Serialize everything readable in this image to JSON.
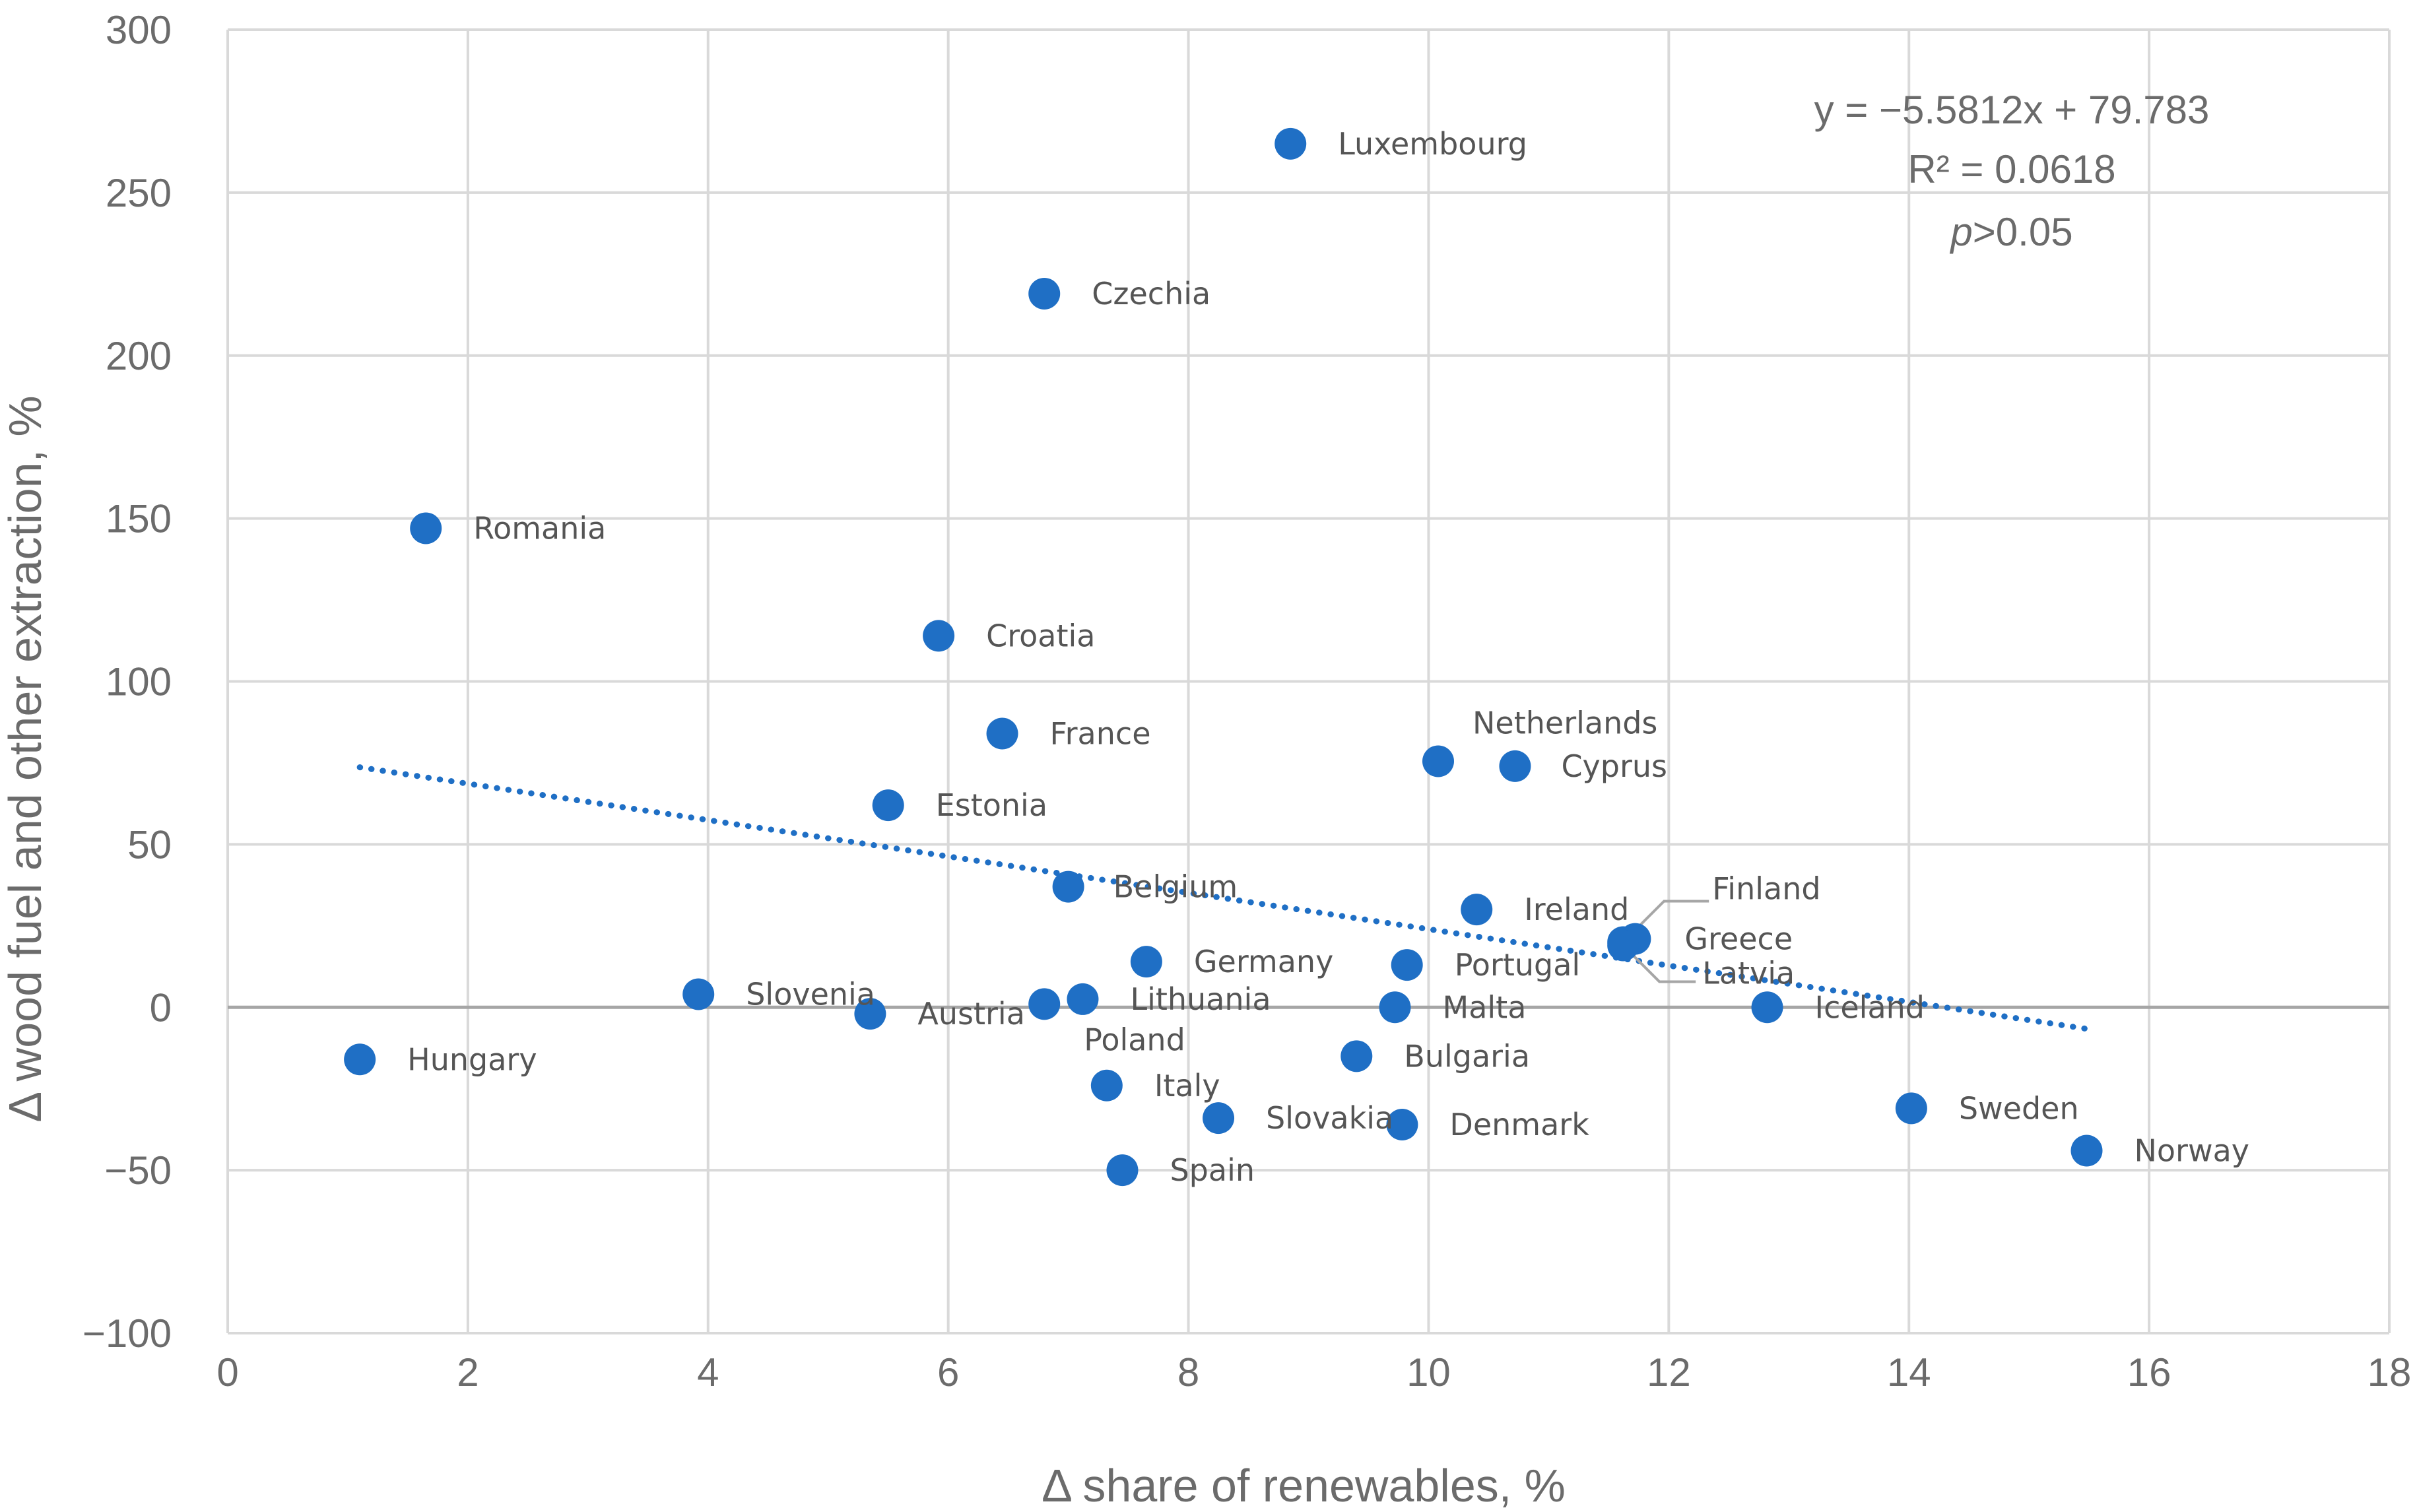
{
  "chart_data": {
    "type": "scatter",
    "title": "",
    "xlabel": "Δ share of renewables, %",
    "ylabel": "Δ wood fuel and other extraction, %",
    "xlim": [
      0,
      18
    ],
    "ylim": [
      -100,
      300
    ],
    "xticks": [
      0,
      2,
      4,
      6,
      8,
      10,
      12,
      14,
      16,
      18
    ],
    "yticks": [
      -100,
      -50,
      0,
      50,
      100,
      150,
      200,
      250,
      300
    ],
    "xtick_labels": [
      "0",
      "2",
      "4",
      "6",
      "8",
      "10",
      "12",
      "14",
      "16",
      "18"
    ],
    "ytick_labels": [
      "−100",
      "−50",
      "0",
      "50",
      "100",
      "150",
      "200",
      "250",
      "300"
    ],
    "grid": true,
    "point_color": "#1f6fc5",
    "trend_color": "#1f6fc5",
    "trendline": {
      "slope": -5.5812,
      "intercept": 79.783,
      "x_range": [
        1.1,
        15.5
      ],
      "equation": "y = −5.5812x + 79.783",
      "r_squared": "R² = 0.0618",
      "p_prefix": "p",
      "p_suffix": ">0.05"
    },
    "points": [
      {
        "label": "Luxembourg",
        "x": 8.85,
        "y": 265
      },
      {
        "label": "Czechia",
        "x": 6.8,
        "y": 219
      },
      {
        "label": "Romania",
        "x": 1.65,
        "y": 147
      },
      {
        "label": "Croatia",
        "x": 5.92,
        "y": 114
      },
      {
        "label": "France",
        "x": 6.45,
        "y": 84
      },
      {
        "label": "Netherlands",
        "x": 10.08,
        "y": 75.5
      },
      {
        "label": "Cyprus",
        "x": 10.72,
        "y": 74
      },
      {
        "label": "Estonia",
        "x": 5.5,
        "y": 62
      },
      {
        "label": "Belgium",
        "x": 7.0,
        "y": 37
      },
      {
        "label": "Ireland",
        "x": 10.4,
        "y": 30
      },
      {
        "label": "Finland",
        "x": 11.62,
        "y": 20
      },
      {
        "label": "Greece",
        "x": 11.72,
        "y": 21
      },
      {
        "label": "Latvia",
        "x": 11.62,
        "y": 19
      },
      {
        "label": "Germany",
        "x": 7.65,
        "y": 14
      },
      {
        "label": "Portugal",
        "x": 9.82,
        "y": 13
      },
      {
        "label": "Slovenia",
        "x": 3.92,
        "y": 4
      },
      {
        "label": "Lithuania",
        "x": 7.12,
        "y": 2.5
      },
      {
        "label": "Poland",
        "x": 6.8,
        "y": 1
      },
      {
        "label": "Malta",
        "x": 9.72,
        "y": 0
      },
      {
        "label": "Iceland",
        "x": 12.82,
        "y": 0
      },
      {
        "label": "Austria",
        "x": 5.35,
        "y": -2
      },
      {
        "label": "Hungary",
        "x": 1.1,
        "y": -16
      },
      {
        "label": "Bulgaria",
        "x": 9.4,
        "y": -15
      },
      {
        "label": "Italy",
        "x": 7.32,
        "y": -24
      },
      {
        "label": "Slovakia",
        "x": 8.25,
        "y": -34
      },
      {
        "label": "Denmark",
        "x": 9.78,
        "y": -36
      },
      {
        "label": "Sweden",
        "x": 14.02,
        "y": -31
      },
      {
        "label": "Norway",
        "x": 15.48,
        "y": -44
      },
      {
        "label": "Spain",
        "x": 7.45,
        "y": -50
      }
    ]
  }
}
